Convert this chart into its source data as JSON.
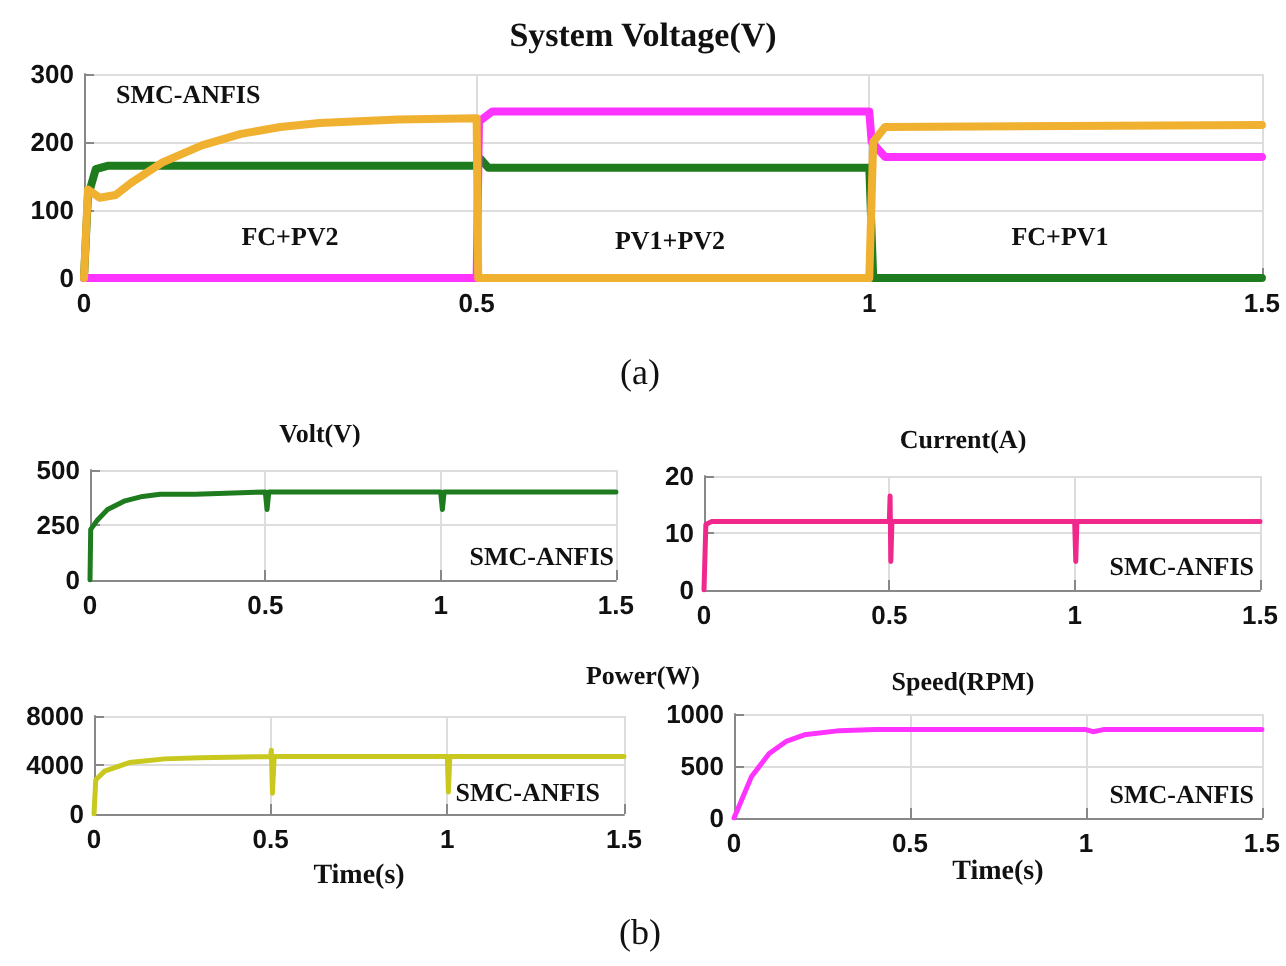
{
  "chart_data": [
    {
      "type": "line",
      "title": "System Voltage(V)",
      "xlim": [
        0,
        1.5
      ],
      "xticks": [
        0,
        0.5,
        1,
        1.5
      ],
      "ylim": [
        0,
        300
      ],
      "yticks": [
        0,
        100,
        200,
        300
      ],
      "grid": true,
      "annotations": [
        "FC+PV2",
        "PV1+PV2",
        "FC+PV1",
        "SMC-ANFIS",
        "(a)"
      ],
      "series": [
        {
          "color": "#1e7b1e",
          "x": [
            0,
            0.005,
            0.015,
            0.03,
            0.5,
            0.505,
            0.515,
            1.0,
            1.005,
            1.5
          ],
          "values": [
            0,
            120,
            160,
            165,
            165,
            175,
            162,
            162,
            0,
            0
          ]
        },
        {
          "color": "#ff33ff",
          "x": [
            0,
            0.5,
            0.503,
            0.52,
            1.0,
            1.003,
            1.02,
            1.5
          ],
          "values": [
            0,
            0,
            230,
            245,
            245,
            200,
            178,
            178
          ]
        },
        {
          "color": "#f0b030",
          "x": [
            0,
            0.005,
            0.02,
            0.04,
            0.06,
            0.1,
            0.15,
            0.2,
            0.25,
            0.3,
            0.4,
            0.5,
            0.502,
            1.0,
            1.005,
            1.02,
            1.5
          ],
          "values": [
            0,
            130,
            118,
            122,
            140,
            170,
            195,
            212,
            222,
            228,
            233,
            235,
            0,
            0,
            200,
            222,
            225
          ]
        }
      ]
    },
    {
      "type": "line",
      "title": "Volt(V)",
      "xlim": [
        0,
        1.5
      ],
      "xticks": [
        0,
        0.5,
        1,
        1.5
      ],
      "ylim": [
        0,
        500
      ],
      "yticks": [
        0,
        250,
        500
      ],
      "grid": true,
      "annotations": [
        "SMC-ANFIS"
      ],
      "series": [
        {
          "color": "#1e7b1e",
          "x": [
            0,
            0.002,
            0.02,
            0.05,
            0.1,
            0.15,
            0.2,
            0.3,
            0.5,
            0.505,
            0.51,
            1.0,
            1.005,
            1.01,
            1.5
          ],
          "values": [
            0,
            230,
            270,
            320,
            360,
            380,
            390,
            390,
            400,
            320,
            400,
            400,
            320,
            400,
            400
          ]
        }
      ]
    },
    {
      "type": "line",
      "title": "Current(A)",
      "xlim": [
        0,
        1.5
      ],
      "xticks": [
        0,
        0.5,
        1,
        1.5
      ],
      "ylim": [
        0,
        20
      ],
      "yticks": [
        0,
        10,
        20
      ],
      "grid": true,
      "annotations": [
        "SMC-ANFIS"
      ],
      "series": [
        {
          "color": "#f0288c",
          "x": [
            0,
            0.005,
            0.02,
            0.5,
            0.502,
            0.504,
            0.507,
            1.0,
            1.003,
            1.006,
            1.5
          ],
          "values": [
            0,
            11.5,
            12,
            12,
            16.5,
            5,
            12,
            12,
            5,
            12,
            12
          ]
        }
      ]
    },
    {
      "type": "line",
      "title": "Power(W)",
      "xlabel": "Time(s)",
      "xlim": [
        0,
        1.5
      ],
      "xticks": [
        0,
        0.5,
        1,
        1.5
      ],
      "ylim": [
        0,
        8000
      ],
      "yticks": [
        0,
        4000,
        8000
      ],
      "grid": true,
      "annotations": [
        "SMC-ANFIS",
        "(b)"
      ],
      "series": [
        {
          "color": "#c8c81e",
          "x": [
            0,
            0.005,
            0.03,
            0.1,
            0.2,
            0.3,
            0.5,
            0.502,
            0.505,
            0.51,
            1.0,
            1.003,
            1.007,
            1.5
          ],
          "values": [
            0,
            2800,
            3500,
            4200,
            4500,
            4600,
            4700,
            5200,
            1700,
            4700,
            4700,
            1800,
            4700,
            4700
          ]
        }
      ]
    },
    {
      "type": "line",
      "title": "Speed(RPM)",
      "xlabel": "Time(s)",
      "xlim": [
        0,
        1.5
      ],
      "xticks": [
        0,
        0.5,
        1,
        1.5
      ],
      "ylim": [
        0,
        1000
      ],
      "yticks": [
        0,
        500,
        1000
      ],
      "grid": true,
      "annotations": [
        "SMC-ANFIS"
      ],
      "series": [
        {
          "color": "#ff33ff",
          "x": [
            0,
            0.025,
            0.05,
            0.1,
            0.15,
            0.2,
            0.3,
            0.4,
            0.5,
            1.0,
            1.02,
            1.05,
            1.5
          ],
          "values": [
            0,
            200,
            400,
            620,
            740,
            800,
            840,
            850,
            850,
            850,
            830,
            850,
            850
          ]
        }
      ]
    }
  ]
}
